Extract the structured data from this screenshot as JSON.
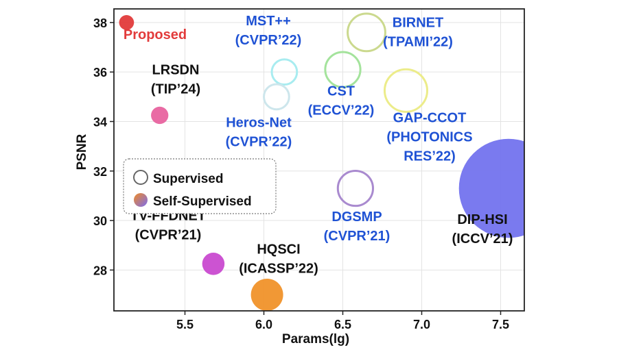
{
  "chart_data": {
    "type": "scatter",
    "title": "",
    "xlabel": "Params(lg)",
    "ylabel": "PSNR",
    "xlim": [
      5.05,
      7.65
    ],
    "ylim": [
      26.35,
      38.55
    ],
    "xticks": [
      5.5,
      6.0,
      6.5,
      7.0,
      7.5
    ],
    "xtick_labels": [
      "5.5",
      "6.0",
      "6.5",
      "7.0",
      "7.5"
    ],
    "yticks": [
      28,
      30,
      32,
      34,
      36,
      38
    ],
    "ytick_labels": [
      "28",
      "30",
      "32",
      "34",
      "36",
      "38"
    ],
    "grid": true,
    "legend_position": "middle-left",
    "legend": [
      {
        "label": "Supervised",
        "style": "hollow",
        "color": "#777777"
      },
      {
        "label": "Self-Supervised",
        "style": "filled-gradient",
        "colors": [
          "#f08a24",
          "#7b6cf0"
        ]
      }
    ],
    "points": [
      {
        "label_lines": [
          "Proposed"
        ],
        "x": 5.13,
        "y": 38.0,
        "size": 0.3,
        "filled": true,
        "color": "#e23b3b",
        "text_color": "#e23b3b"
      },
      {
        "label_lines": [
          "LRSDN",
          "(TIP’24)"
        ],
        "x": 5.34,
        "y": 34.25,
        "size": 0.35,
        "filled": true,
        "color": "#e8639f",
        "text_color": "#111111"
      },
      {
        "label_lines": [
          "MST++",
          "(CVPR’22)"
        ],
        "x": 6.13,
        "y": 36.0,
        "size": 0.55,
        "filled": false,
        "color": "#a8ecf0",
        "text_color": "#1f52d4"
      },
      {
        "label_lines": [
          "Heros-Net",
          "(CVPR’22)"
        ],
        "x": 6.08,
        "y": 35.0,
        "size": 0.55,
        "filled": false,
        "color": "#cde6ec",
        "text_color": "#1f52d4"
      },
      {
        "label_lines": [
          "CST",
          "(ECCV’22)"
        ],
        "x": 6.5,
        "y": 36.1,
        "size": 0.75,
        "filled": false,
        "color": "#a4e39c",
        "text_color": "#1f52d4"
      },
      {
        "label_lines": [
          "BIRNET",
          "(TPAMI’22)"
        ],
        "x": 6.65,
        "y": 37.6,
        "size": 0.8,
        "filled": false,
        "color": "#cbd98e",
        "text_color": "#1f52d4"
      },
      {
        "label_lines": [
          "GAP-CCOT",
          "(PHOTONICS",
          "RES’22)"
        ],
        "x": 6.9,
        "y": 35.25,
        "size": 0.9,
        "filled": false,
        "color": "#ecec8a",
        "text_color": "#1f52d4"
      },
      {
        "label_lines": [
          "DGSMP",
          "(CVPR’21)"
        ],
        "x": 6.58,
        "y": 31.3,
        "size": 0.75,
        "filled": false,
        "color": "#a98acf",
        "text_color": "#1f52d4"
      },
      {
        "label_lines": [
          "DIP-HSI",
          "(ICCV’21)"
        ],
        "x": 7.55,
        "y": 31.3,
        "size": 2.0,
        "filled": true,
        "color": "#7373ee",
        "text_color": "#111111"
      },
      {
        "label_lines": [
          "TV-FFDNET",
          "(CVPR’21)"
        ],
        "x": 5.68,
        "y": 28.25,
        "size": 0.45,
        "filled": true,
        "color": "#c94ad0",
        "text_color": "#111111"
      },
      {
        "label_lines": [
          "HQSCI",
          "(ICASSP’22)"
        ],
        "x": 6.02,
        "y": 27.0,
        "size": 0.65,
        "filled": true,
        "color": "#f0922a",
        "text_color": "#111111"
      }
    ]
  }
}
